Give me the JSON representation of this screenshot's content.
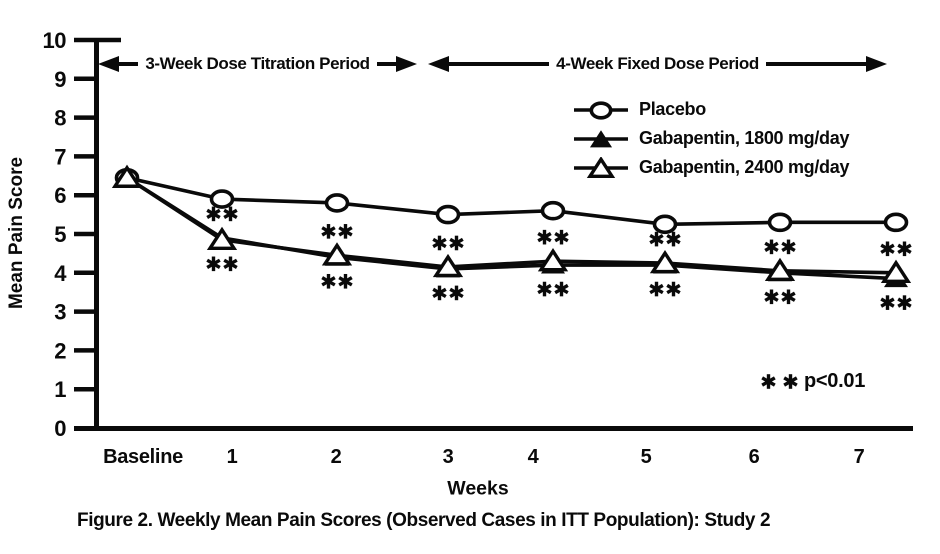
{
  "figure": {
    "caption": "Figure 2. Weekly Mean Pain Scores (Observed Cases in ITT Population): Study 2",
    "significance_note": "** p<0.01",
    "annotations": {
      "titration": "3-Week Dose Titration Period",
      "fixed": "4-Week Fixed Dose Period"
    }
  },
  "chart_data": {
    "type": "line",
    "title": "",
    "xlabel": "Weeks",
    "ylabel": "Mean Pain Score",
    "ylim": [
      0,
      10
    ],
    "yticks": [
      0,
      1,
      2,
      3,
      4,
      5,
      6,
      7,
      8,
      9,
      10
    ],
    "categories": [
      "Baseline",
      "1",
      "2",
      "3",
      "4",
      "5",
      "6",
      "7"
    ],
    "grid": false,
    "legend_position": "top-right",
    "series": [
      {
        "name": "Placebo",
        "marker": "open-circle",
        "values": [
          6.45,
          5.9,
          5.8,
          5.5,
          5.6,
          5.25,
          5.3,
          5.3
        ]
      },
      {
        "name": "Gabapentin, 1800 mg/day",
        "marker": "filled-triangle",
        "values": [
          6.45,
          4.9,
          4.4,
          4.1,
          4.2,
          4.2,
          4.0,
          3.85
        ]
      },
      {
        "name": "Gabapentin, 2400 mg/day",
        "marker": "open-triangle",
        "values": [
          6.45,
          4.85,
          4.45,
          4.15,
          4.3,
          4.25,
          4.05,
          4.0
        ]
      }
    ],
    "significance_weeks": [
      "1",
      "2",
      "3",
      "4",
      "5",
      "6",
      "7"
    ],
    "colors": {
      "foreground": "#0a0a0a",
      "background": "#ffffff"
    }
  }
}
